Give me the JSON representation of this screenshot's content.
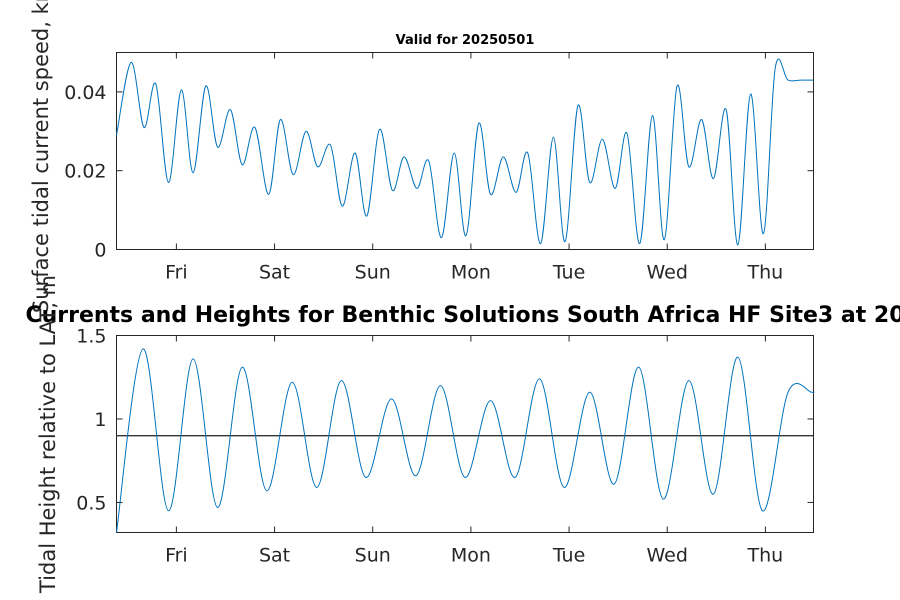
{
  "chart_data": [
    {
      "type": "line",
      "title": "Valid for 20250501",
      "xlabel": "",
      "ylabel": "Surface tidal current speed, kn",
      "xlim": [
        0,
        7.1
      ],
      "ylim": [
        0,
        0.05
      ],
      "x_tick_labels": [
        "Fri",
        "Sat",
        "Sun",
        "Mon",
        "Tue",
        "Wed",
        "Thu"
      ],
      "y_tick_labels": [
        "0",
        "0.02",
        "0.04"
      ],
      "y_ticks": [
        0,
        0.02,
        0.04
      ],
      "line_color": "#0072bd",
      "series": [
        {
          "x": [
            0.0,
            0.15,
            0.28,
            0.4,
            0.53,
            0.66,
            0.78,
            0.91,
            1.03,
            1.16,
            1.28,
            1.41,
            1.55,
            1.67,
            1.8,
            1.93,
            2.05,
            2.18,
            2.3,
            2.43,
            2.55,
            2.68,
            2.81,
            2.93,
            3.06,
            3.18,
            3.31,
            3.44,
            3.56,
            3.69,
            3.81,
            3.94,
            4.07,
            4.19,
            4.32,
            4.45,
            4.57,
            4.7,
            4.82,
            4.95,
            5.08,
            5.2,
            5.33,
            5.46,
            5.58,
            5.71,
            5.83,
            5.96,
            6.08,
            6.21,
            6.33,
            6.46,
            6.59,
            6.71,
            6.84,
            6.97,
            7.1
          ],
          "y": [
            0.029,
            0.0475,
            0.031,
            0.042,
            0.017,
            0.0405,
            0.0195,
            0.0415,
            0.026,
            0.0355,
            0.0215,
            0.031,
            0.014,
            0.033,
            0.019,
            0.03,
            0.021,
            0.0265,
            0.011,
            0.0245,
            0.0085,
            0.0305,
            0.015,
            0.0235,
            0.0155,
            0.0225,
            0.003,
            0.0245,
            0.0035,
            0.032,
            0.014,
            0.0235,
            0.0145,
            0.0245,
            0.0015,
            0.0285,
            0.002,
            0.0365,
            0.017,
            0.028,
            0.0155,
            0.0295,
            0.0015,
            0.034,
            0.0025,
            0.0415,
            0.021,
            0.033,
            0.018,
            0.0355,
            0.0012,
            0.0395,
            0.004,
            0.046,
            0.043,
            0.043,
            0.043
          ]
        }
      ]
    },
    {
      "type": "line",
      "title": "Currents and Heights for Benthic Solutions South Africa HF Site3 at 20",
      "xlabel": "",
      "ylabel": "Tidal Height relative to LAT, m",
      "xlim": [
        0,
        7.1
      ],
      "ylim": [
        0.32,
        1.5
      ],
      "x_tick_labels": [
        "Fri",
        "Sat",
        "Sun",
        "Mon",
        "Tue",
        "Wed",
        "Thu"
      ],
      "y_tick_labels": [
        "0.5",
        "1",
        "1.5"
      ],
      "y_ticks": [
        0.5,
        1.0,
        1.5
      ],
      "reference_line": 0.9,
      "reference_line_color": "#333333",
      "line_color": "#0072bd",
      "series": [
        {
          "x": [
            0.0,
            0.27,
            0.53,
            0.78,
            1.03,
            1.28,
            1.53,
            1.79,
            2.04,
            2.29,
            2.54,
            2.8,
            3.05,
            3.3,
            3.55,
            3.81,
            4.06,
            4.31,
            4.56,
            4.82,
            5.07,
            5.32,
            5.57,
            5.83,
            6.08,
            6.33,
            6.58,
            6.84,
            7.08,
            7.1
          ],
          "y": [
            0.32,
            1.42,
            0.45,
            1.36,
            0.47,
            1.31,
            0.57,
            1.22,
            0.59,
            1.23,
            0.65,
            1.12,
            0.66,
            1.2,
            0.65,
            1.11,
            0.65,
            1.24,
            0.59,
            1.16,
            0.61,
            1.31,
            0.52,
            1.23,
            0.55,
            1.37,
            0.45,
            1.16,
            1.16,
            1.16
          ]
        }
      ]
    }
  ]
}
